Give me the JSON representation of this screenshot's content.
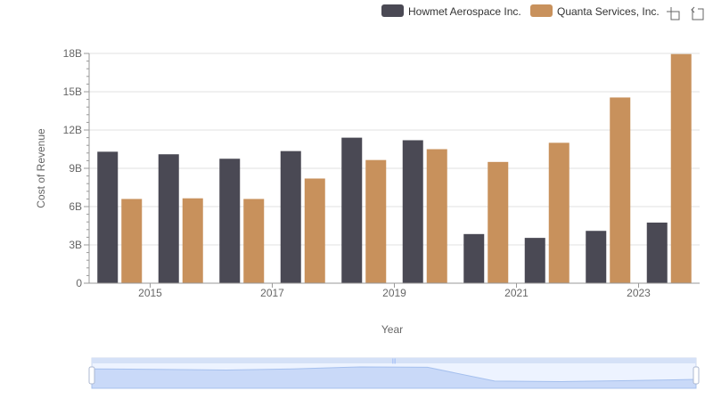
{
  "chart_data": {
    "type": "bar",
    "title": "",
    "xlabel": "Year",
    "ylabel": "Cost of Revenue",
    "ylim": [
      0,
      18000000000
    ],
    "y_ticks": [
      "0",
      "3B",
      "6B",
      "9B",
      "12B",
      "15B",
      "18B"
    ],
    "x_tick_labels": [
      "2015",
      "2017",
      "2019",
      "2021",
      "2023"
    ],
    "grid": true,
    "legend_position": "top-right",
    "categories": [
      "2014",
      "2015",
      "2016",
      "2017",
      "2018",
      "2019",
      "2020",
      "2021",
      "2022",
      "2023"
    ],
    "series": [
      {
        "name": "Howmet Aerospace Inc.",
        "color": "#4a4954",
        "values": [
          10300000000,
          10100000000,
          9750000000,
          10350000000,
          11400000000,
          11200000000,
          3850000000,
          3550000000,
          4100000000,
          4750000000
        ]
      },
      {
        "name": "Quanta Services, Inc.",
        "color": "#c8915c",
        "values": [
          6600000000,
          6650000000,
          6600000000,
          8200000000,
          9650000000,
          10500000000,
          9500000000,
          11000000000,
          14550000000,
          17950000000
        ]
      }
    ]
  },
  "toolbar": {
    "zoom_icon": "zoom-icon",
    "restore_icon": "restore-icon"
  }
}
